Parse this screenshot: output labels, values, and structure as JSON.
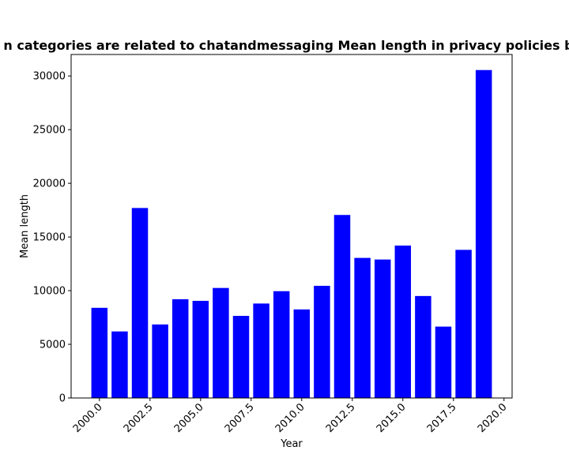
{
  "chart_data": {
    "type": "bar",
    "title": "n categories are related to chatandmessaging Mean length in privacy policies b",
    "xlabel": "Year",
    "ylabel": "Mean length",
    "bar_color": "#0000ff",
    "x": [
      2000,
      2001,
      2002,
      2003,
      2004,
      2005,
      2006,
      2007,
      2008,
      2009,
      2010,
      2011,
      2012,
      2013,
      2014,
      2015,
      2016,
      2017,
      2018,
      2019
    ],
    "values": [
      8400,
      6200,
      17700,
      6850,
      9200,
      9050,
      10250,
      7650,
      8800,
      9950,
      8250,
      10450,
      17050,
      13050,
      12900,
      14200,
      9500,
      6650,
      13800,
      30550
    ],
    "xlim": [
      1998.6,
      2020.4
    ],
    "ylim": [
      0,
      32000
    ],
    "xticks": [
      2000.0,
      2002.5,
      2005.0,
      2007.5,
      2010.0,
      2012.5,
      2015.0,
      2017.5,
      2020.0
    ],
    "xtick_labels": [
      "2000.0",
      "2002.5",
      "2005.0",
      "2007.5",
      "2010.0",
      "2012.5",
      "2015.0",
      "2017.5",
      "2020.0"
    ],
    "yticks": [
      0,
      5000,
      10000,
      15000,
      20000,
      25000,
      30000
    ],
    "ytick_labels": [
      "0",
      "5000",
      "10000",
      "15000",
      "20000",
      "25000",
      "30000"
    ],
    "grid": false,
    "legend": "none"
  }
}
